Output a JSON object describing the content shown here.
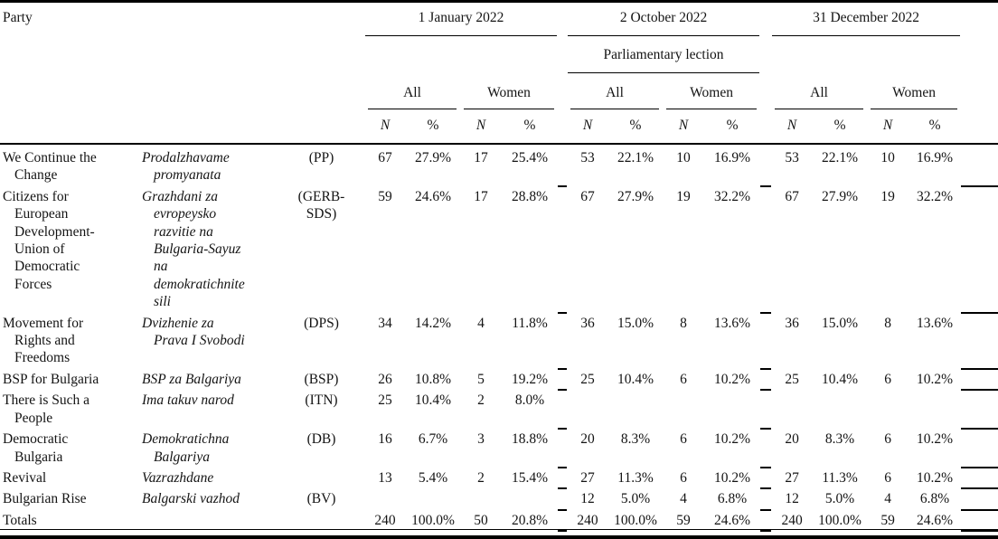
{
  "table": {
    "header": {
      "party_label": "Party",
      "dates": [
        "1 January 2022",
        "2 October 2022",
        "31 December 2022"
      ],
      "october_subheader": "Parliamentary lection",
      "group_labels": [
        "All",
        "Women"
      ],
      "col_n": "N",
      "col_pct": "%"
    },
    "rows": [
      {
        "name_en": "We Continue the\nChange",
        "name_bg": "Prodalzhavame\npromyanata",
        "abbr": "(PP)",
        "values": [
          "67",
          "27.9%",
          "17",
          "25.4%",
          "53",
          "22.1%",
          "10",
          "16.9%",
          "53",
          "22.1%",
          "10",
          "16.9%"
        ]
      },
      {
        "name_en": "Citizens for\nEuropean\nDevelopment-\nUnion of\nDemocratic\nForces",
        "name_bg": "Grazhdani za\nevropeysko\nrazvitie na\nBulgaria-Sayuz\nna\ndemokratichnite\nsili",
        "abbr": "(GERB-\nSDS)",
        "values": [
          "59",
          "24.6%",
          "17",
          "28.8%",
          "67",
          "27.9%",
          "19",
          "32.2%",
          "67",
          "27.9%",
          "19",
          "32.2%"
        ]
      },
      {
        "name_en": "Movement for\nRights and\nFreedoms",
        "name_bg": "Dvizhenie za\nPrava I Svobodi",
        "abbr": "(DPS)",
        "values": [
          "34",
          "14.2%",
          "4",
          "11.8%",
          "36",
          "15.0%",
          "8",
          "13.6%",
          "36",
          "15.0%",
          "8",
          "13.6%"
        ]
      },
      {
        "name_en": "BSP for Bulgaria",
        "name_bg": "BSP za Balgariya",
        "abbr": "(BSP)",
        "values": [
          "26",
          "10.8%",
          "5",
          "19.2%",
          "25",
          "10.4%",
          "6",
          "10.2%",
          "25",
          "10.4%",
          "6",
          "10.2%"
        ]
      },
      {
        "name_en": "There is Such a\nPeople",
        "name_bg": "Ima takuv narod",
        "abbr": "(ITN)",
        "values": [
          "25",
          "10.4%",
          "2",
          "8.0%",
          "",
          "",
          "",
          "",
          "",
          "",
          "",
          ""
        ]
      },
      {
        "name_en": "Democratic\nBulgaria",
        "name_bg": "Demokratichna\nBalgariya",
        "abbr": "(DB)",
        "values": [
          "16",
          "6.7%",
          "3",
          "18.8%",
          "20",
          "8.3%",
          "6",
          "10.2%",
          "20",
          "8.3%",
          "6",
          "10.2%"
        ]
      },
      {
        "name_en": "Revival",
        "name_bg": "Vazrazhdane",
        "abbr": "",
        "values": [
          "13",
          "5.4%",
          "2",
          "15.4%",
          "27",
          "11.3%",
          "6",
          "10.2%",
          "27",
          "11.3%",
          "6",
          "10.2%"
        ]
      },
      {
        "name_en": "Bulgarian Rise",
        "name_bg": "Balgarski vazhod",
        "abbr": "(BV)",
        "values": [
          "",
          "",
          "",
          "",
          "12",
          "5.0%",
          "4",
          "6.8%",
          "12",
          "5.0%",
          "4",
          "6.8%"
        ]
      },
      {
        "name_en": "Totals",
        "name_bg": "",
        "abbr": "",
        "values": [
          "240",
          "100.0%",
          "50",
          "20.8%",
          "240",
          "100.0%",
          "59",
          "24.6%",
          "240",
          "100.0%",
          "59",
          "24.6%"
        ]
      }
    ]
  }
}
